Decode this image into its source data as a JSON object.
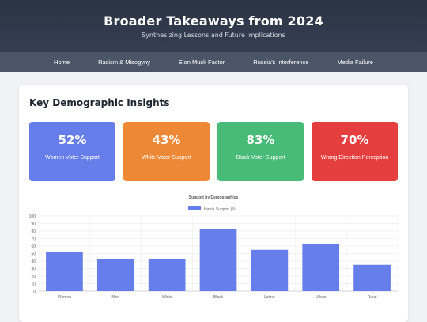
{
  "header": {
    "title": "Broader Takeaways from 2024",
    "subtitle": "Synthesizing Lessons and Future Implications"
  },
  "nav": {
    "items": [
      "Home",
      "Racism & Misogyny",
      "Elon Musk Factor",
      "Russia's Interference",
      "Media Failure"
    ]
  },
  "section": {
    "title": "Key Demographic Insights"
  },
  "stats": [
    {
      "value": "52%",
      "label": "Women Voter Support",
      "color": "#667eea"
    },
    {
      "value": "43%",
      "label": "White Voter Support",
      "color": "#ed8936"
    },
    {
      "value": "83%",
      "label": "Black Voter Support",
      "color": "#48bb78"
    },
    {
      "value": "70%",
      "label": "Wrong Direction Perception",
      "color": "#e53e3e"
    }
  ],
  "chart_data": {
    "type": "bar",
    "title": "Support by Demographics",
    "categories": [
      "Women",
      "Men",
      "White",
      "Black",
      "Latino",
      "Urban",
      "Rural"
    ],
    "series": [
      {
        "name": "Harris Support (%)",
        "values": [
          52,
          43,
          43,
          83,
          55,
          63,
          35
        ],
        "color": "#667eea"
      }
    ],
    "ylim": [
      0,
      100
    ],
    "yticks": [
      0,
      10,
      20,
      30,
      40,
      50,
      60,
      70,
      80,
      90,
      100
    ],
    "legend": "top",
    "grid": true
  }
}
